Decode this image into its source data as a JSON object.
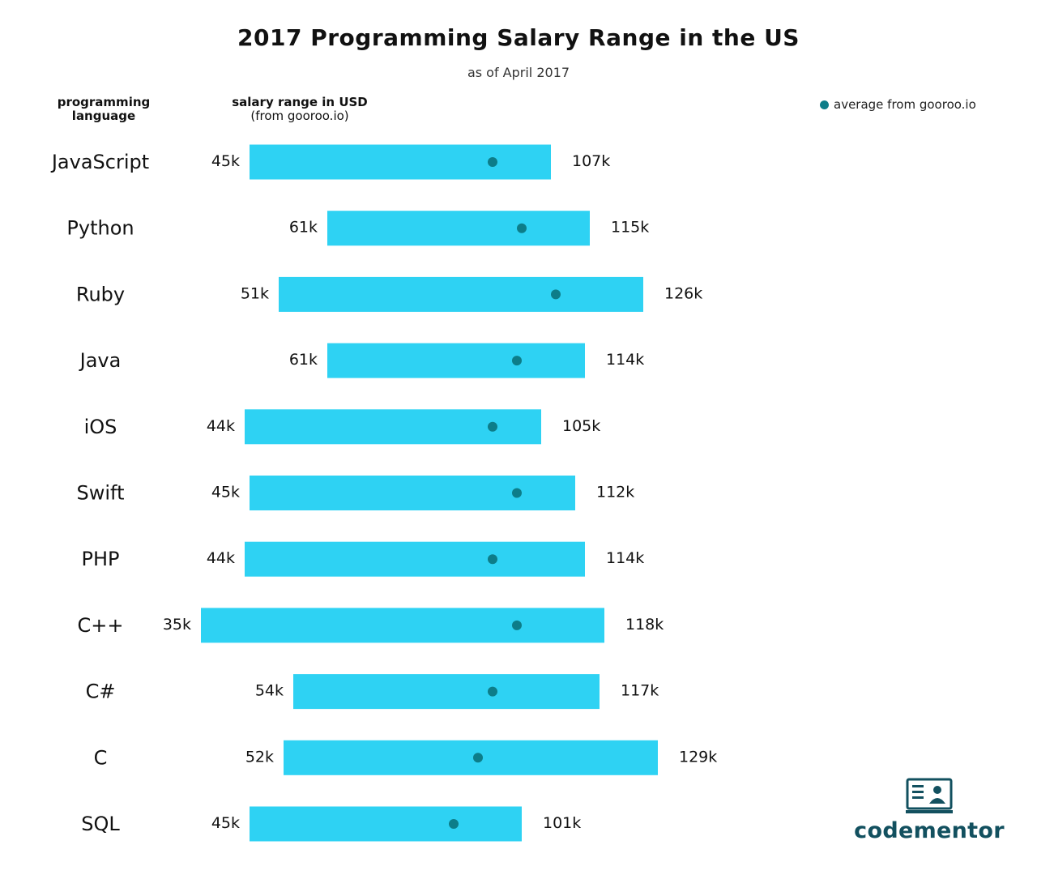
{
  "title": "2017 Programming Salary Range in the US",
  "subtitle": "as of April 2017",
  "header": {
    "language_line1": "programming",
    "language_line2": "language",
    "range_line1": "salary range in USD",
    "range_line2": "(from gooroo.io)"
  },
  "legend": {
    "label": "average from gooroo.io"
  },
  "logo": {
    "text": "codementor"
  },
  "colors": {
    "bar": "#2ed2f3",
    "average": "#0d7d89",
    "brand": "#12505f"
  },
  "chart_data": {
    "type": "bar",
    "orientation": "horizontal-range",
    "title": "2017 Programming Salary Range in the US",
    "subtitle": "as of April 2017",
    "categories": [
      "JavaScript",
      "Python",
      "Ruby",
      "Java",
      "iOS",
      "Swift",
      "PHP",
      "C++",
      "C#",
      "C",
      "SQL"
    ],
    "series": [
      {
        "name": "min",
        "values": [
          45,
          61,
          51,
          61,
          44,
          45,
          44,
          35,
          54,
          52,
          45
        ]
      },
      {
        "name": "max",
        "values": [
          107,
          115,
          126,
          114,
          105,
          112,
          114,
          118,
          117,
          129,
          101
        ]
      },
      {
        "name": "average from gooroo.io",
        "values": [
          95,
          101,
          108,
          100,
          95,
          100,
          95,
          100,
          95,
          92,
          87
        ]
      }
    ],
    "min_labels": [
      "45k",
      "61k",
      "51k",
      "61k",
      "44k",
      "45k",
      "44k",
      "35k",
      "54k",
      "52k",
      "45k"
    ],
    "max_labels": [
      "107k",
      "115k",
      "126k",
      "114k",
      "105k",
      "112k",
      "114k",
      "118k",
      "117k",
      "129k",
      "101k"
    ],
    "xlim": [
      25,
      130
    ],
    "grid": false,
    "legend": "top-right"
  }
}
